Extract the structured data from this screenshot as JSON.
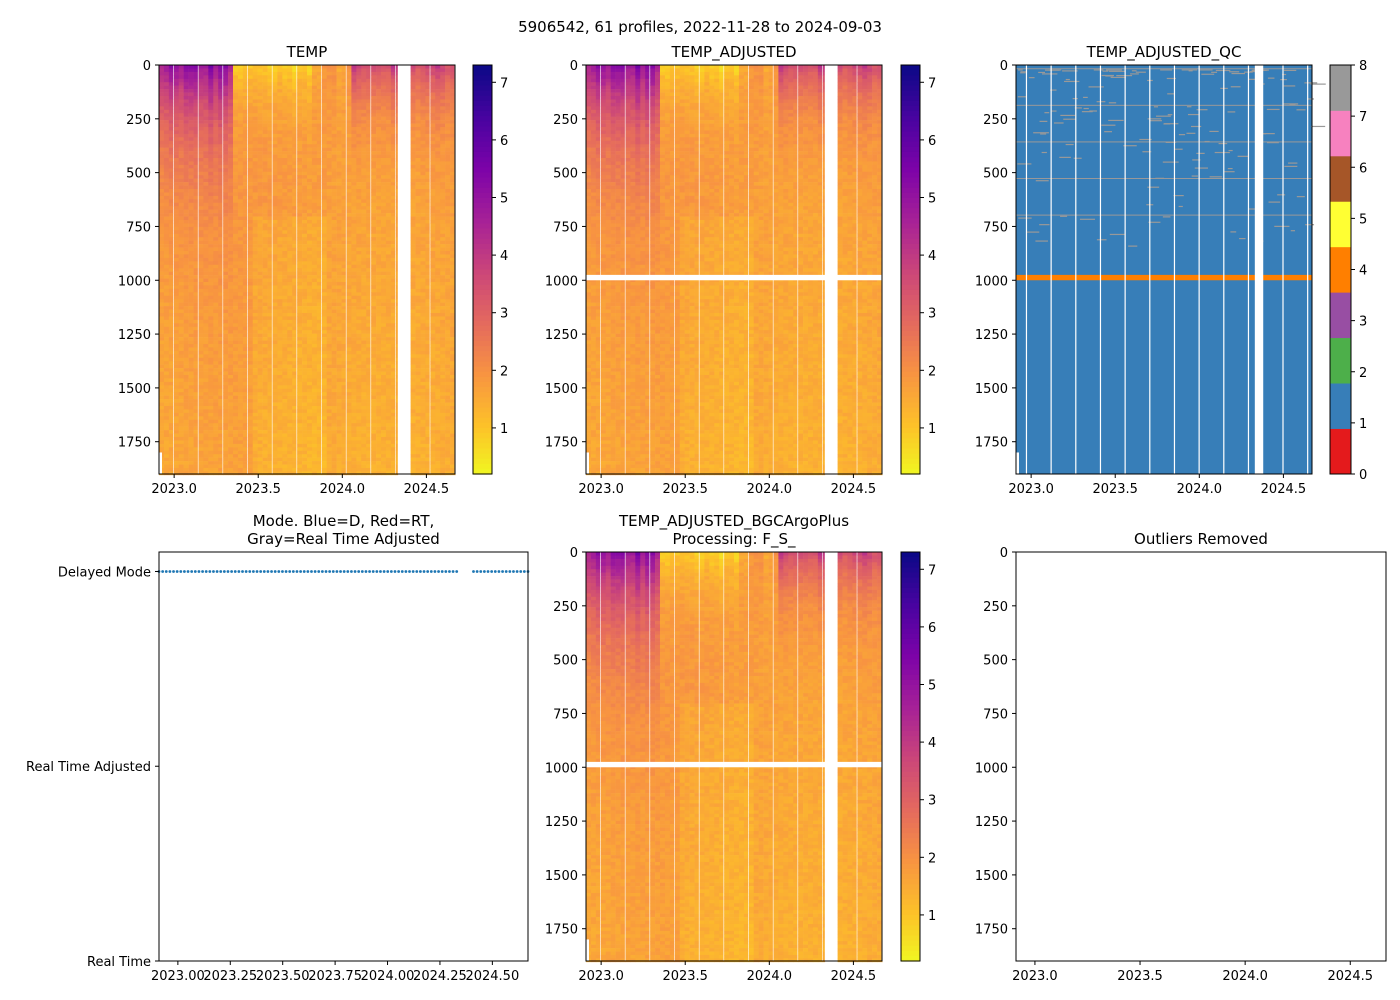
{
  "figure": {
    "suptitle": "5906542, 61 profiles, 2022-11-28 to 2024-09-03"
  },
  "colors": {
    "qc_legend": [
      "#e41a1c",
      "#377eb8",
      "#4daf4a",
      "#984ea3",
      "#ff7f00",
      "#ffff33",
      "#a65628",
      "#f781bf",
      "#999999"
    ],
    "mode_marker": "#1f77b4",
    "qc_bad": "#ff7f00"
  },
  "chart_data": [
    {
      "id": "temp",
      "type": "heatmap",
      "title": "TEMP",
      "xlabel": "",
      "ylabel": "",
      "xlim": [
        2022.91,
        2024.67
      ],
      "ylim": [
        1900,
        0
      ],
      "xticks": [
        "2023.0",
        "2023.5",
        "2024.0",
        "2024.5"
      ],
      "xtick_values": [
        2023.0,
        2023.5,
        2024.0,
        2024.5
      ],
      "yticks": [
        "0",
        "250",
        "500",
        "750",
        "1000",
        "1250",
        "1500",
        "1750"
      ],
      "ytick_values": [
        0,
        250,
        500,
        750,
        1000,
        1250,
        1500,
        1750
      ],
      "colormap": "plasma_r",
      "clim": [
        0.2,
        7.3
      ],
      "colorbar_ticks": [
        "1",
        "2",
        "3",
        "4",
        "5",
        "6",
        "7"
      ],
      "colorbar_tick_values": [
        1,
        2,
        3,
        4,
        5,
        6,
        7
      ],
      "gap": [
        2024.33,
        2024.38
      ]
    },
    {
      "id": "temp_adj",
      "type": "heatmap",
      "title": "TEMP_ADJUSTED",
      "xlim": [
        2022.91,
        2024.67
      ],
      "ylim": [
        1900,
        0
      ],
      "xticks": [
        "2023.0",
        "2023.5",
        "2024.0",
        "2024.5"
      ],
      "xtick_values": [
        2023.0,
        2023.5,
        2024.0,
        2024.5
      ],
      "yticks": [
        "0",
        "250",
        "500",
        "750",
        "1000",
        "1250",
        "1500",
        "1750"
      ],
      "ytick_values": [
        0,
        250,
        500,
        750,
        1000,
        1250,
        1500,
        1750
      ],
      "colormap": "plasma_r",
      "clim": [
        0.2,
        7.3
      ],
      "colorbar_ticks": [
        "1",
        "2",
        "3",
        "4",
        "5",
        "6",
        "7"
      ],
      "colorbar_tick_values": [
        1,
        2,
        3,
        4,
        5,
        6,
        7
      ],
      "gap": [
        2024.33,
        2024.38
      ],
      "missing_band_depth": [
        975,
        1000
      ]
    },
    {
      "id": "temp_adj_qc",
      "type": "heatmap",
      "title": "TEMP_ADJUSTED_QC",
      "xlim": [
        2022.91,
        2024.67
      ],
      "ylim": [
        1900,
        0
      ],
      "xticks": [
        "2023.0",
        "2023.5",
        "2024.0",
        "2024.5"
      ],
      "xtick_values": [
        2023.0,
        2023.5,
        2024.0,
        2024.5
      ],
      "yticks": [
        "0",
        "250",
        "500",
        "750",
        "1000",
        "1250",
        "1500",
        "1750"
      ],
      "ytick_values": [
        0,
        250,
        500,
        750,
        1000,
        1250,
        1500,
        1750
      ],
      "colormap": "qc_categorical",
      "clim": [
        0,
        8
      ],
      "dominant_flag": 1,
      "bad_flag_band_depth": [
        975,
        1000
      ],
      "bad_flag_value": 4,
      "colorbar_ticks": [
        "0",
        "1",
        "2",
        "3",
        "4",
        "5",
        "6",
        "7",
        "8"
      ],
      "colorbar_tick_values": [
        0,
        1,
        2,
        3,
        4,
        5,
        6,
        7,
        8
      ],
      "gap": [
        2024.33,
        2024.38
      ]
    },
    {
      "id": "mode",
      "type": "scatter",
      "title": "Mode. Blue=D, Red=RT,",
      "title2": "Gray=Real Time Adjusted",
      "xlim": [
        2022.91,
        2024.67
      ],
      "xticks": [
        "2023.00",
        "2023.25",
        "2023.50",
        "2023.75",
        "2024.00",
        "2024.25",
        "2024.50"
      ],
      "xtick_values": [
        2023.0,
        2023.25,
        2023.5,
        2023.75,
        2024.0,
        2024.25,
        2024.5
      ],
      "yticks": [
        "Delayed Mode",
        "Real Time Adjusted",
        "Real Time"
      ],
      "ytick_values": [
        2,
        1,
        0
      ],
      "ylim": [
        0,
        2.1
      ],
      "points_y": 2,
      "points_x_ranges": [
        [
          2022.91,
          2024.33
        ],
        [
          2024.41,
          2024.67
        ]
      ],
      "n_points": 61
    },
    {
      "id": "bgc",
      "type": "heatmap",
      "title": "TEMP_ADJUSTED_BGCArgoPlus",
      "title2": "Processing: F_S_",
      "xlim": [
        2022.91,
        2024.67
      ],
      "ylim": [
        1900,
        0
      ],
      "xticks": [
        "2023.0",
        "2023.5",
        "2024.0",
        "2024.5"
      ],
      "xtick_values": [
        2023.0,
        2023.5,
        2024.0,
        2024.5
      ],
      "yticks": [
        "0",
        "250",
        "500",
        "750",
        "1000",
        "1250",
        "1500",
        "1750"
      ],
      "ytick_values": [
        0,
        250,
        500,
        750,
        1000,
        1250,
        1500,
        1750
      ],
      "colormap": "plasma_r",
      "clim": [
        0.2,
        7.3
      ],
      "colorbar_ticks": [
        "1",
        "2",
        "3",
        "4",
        "5",
        "6",
        "7"
      ],
      "colorbar_tick_values": [
        1,
        2,
        3,
        4,
        5,
        6,
        7
      ],
      "gap": [
        2024.33,
        2024.38
      ],
      "missing_band_depth": [
        975,
        1000
      ]
    },
    {
      "id": "outliers",
      "type": "scatter",
      "title": "Outliers Removed",
      "xlim": [
        2022.91,
        2024.67
      ],
      "ylim": [
        1900,
        0
      ],
      "xticks": [
        "2023.0",
        "2023.5",
        "2024.0",
        "2024.5"
      ],
      "xtick_values": [
        2023.0,
        2023.5,
        2024.0,
        2024.5
      ],
      "yticks": [
        "0",
        "250",
        "500",
        "750",
        "1000",
        "1250",
        "1500",
        "1750"
      ],
      "ytick_values": [
        0,
        250,
        500,
        750,
        1000,
        1250,
        1500,
        1750
      ],
      "points": []
    }
  ]
}
